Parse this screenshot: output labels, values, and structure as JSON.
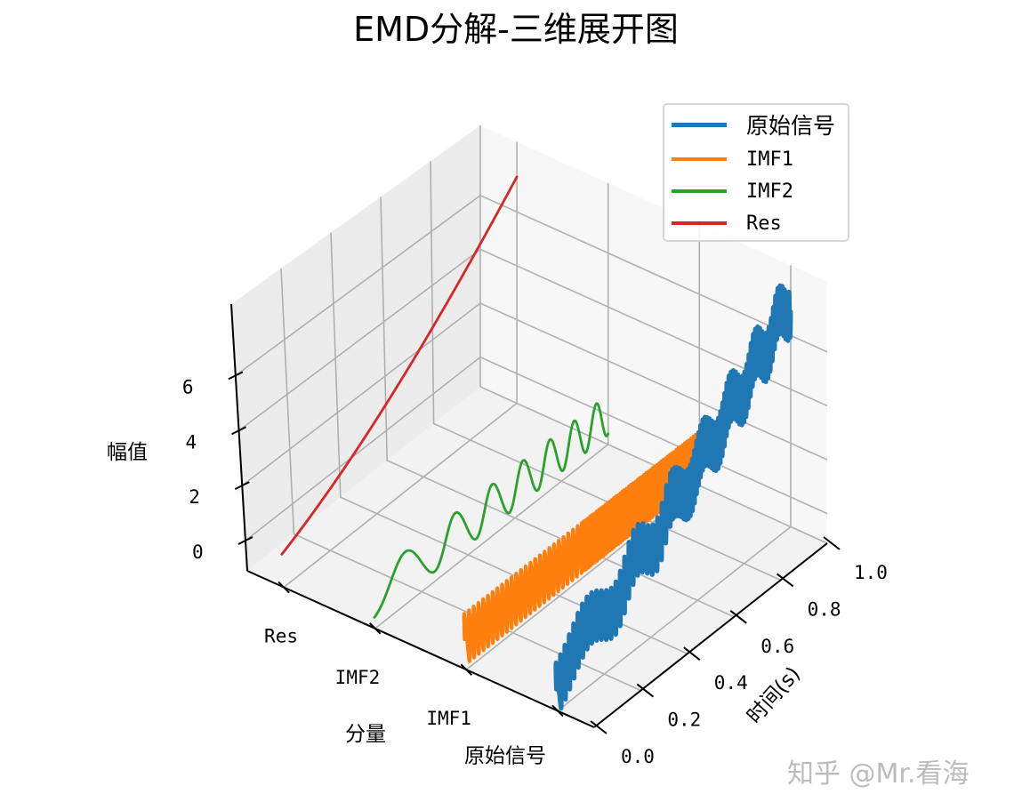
{
  "title": "EMD分解-三维展开图",
  "watermark": "知乎 @Mr.看海",
  "legend": {
    "items": [
      {
        "label": "原始信号",
        "color": "#1f77b4"
      },
      {
        "label": "IMF1",
        "color": "#ff7f0e"
      },
      {
        "label": "IMF2",
        "color": "#2ca02c"
      },
      {
        "label": "Res",
        "color": "#d62728"
      }
    ]
  },
  "axes": {
    "x_label": "分量",
    "y_label": "时间(s)",
    "z_label": "幅值",
    "x_ticks": [
      "Res",
      "IMF2",
      "IMF1",
      "原始信号"
    ],
    "y_ticks": [
      "0.0",
      "0.2",
      "0.4",
      "0.6",
      "0.8",
      "1.0"
    ],
    "z_ticks": [
      "0",
      "2",
      "4",
      "6"
    ]
  },
  "chart_data": {
    "type": "line",
    "subtype": "3d_waterfall",
    "title": "EMD分解-三维展开图",
    "xlabel": "分量",
    "ylabel": "时间(s)",
    "zlabel": "幅值",
    "x_categories": [
      "Res",
      "IMF2",
      "IMF1",
      "原始信号"
    ],
    "ylim": [
      0,
      1
    ],
    "zlim": [
      -1.1,
      8.6
    ],
    "z_ticks": [
      0,
      2,
      4,
      6
    ],
    "grid": true,
    "legend_position": "upper right",
    "series": [
      {
        "name": "原始信号",
        "x_index": 3,
        "color": "#1f77b4",
        "linewidth": 5,
        "description": "trend 0.2+7t^2-ish plus IMF1 (~60Hz then ~100Hz, amp ~0.8) plus IMF2 chirp (amp ~0.5)",
        "t_start": 0.0,
        "t_end": 1.0,
        "z_start": 0.2,
        "z_end": 7.2
      },
      {
        "name": "IMF1",
        "x_index": 2,
        "color": "#ff7f0e",
        "linewidth": 4,
        "description": "high-frequency oscillation, ~25 cycles over 0-0.5s then denser over 0.5-1s, amplitude ~0.9",
        "amplitude": 0.9,
        "t_start": 0.0,
        "t_end": 1.0
      },
      {
        "name": "IMF2",
        "x_index": 1,
        "color": "#2ca02c",
        "linewidth": 2.5,
        "description": "chirp with increasing frequency, ~8 cycles, amplitude ~0.75",
        "amplitude": 0.75,
        "t_start": 0.0,
        "t_end": 1.0
      },
      {
        "name": "Res",
        "x_index": 0,
        "color": "#d62728",
        "linewidth": 2.5,
        "description": "smooth monotonically increasing trend",
        "z_start": 0.1,
        "z_end": 7.3
      }
    ]
  }
}
